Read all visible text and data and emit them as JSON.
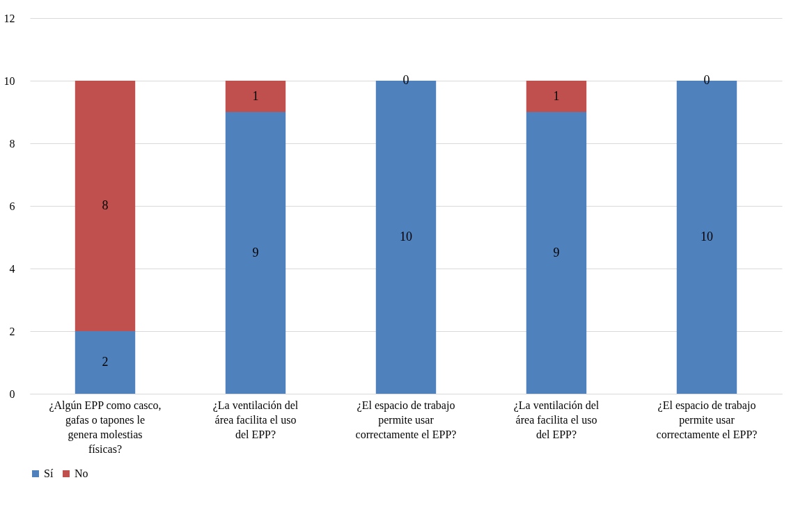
{
  "chart_data": {
    "type": "bar",
    "stacked": true,
    "categories": [
      "¿Algún EPP como casco, gafas o tapones le genera molestias físicas?",
      "¿La ventilación del área facilita el uso del EPP?",
      "¿El espacio de trabajo permite usar correctamente el EPP?",
      "¿La ventilación del área facilita el uso del EPP?",
      "¿El espacio de trabajo permite usar correctamente el EPP?"
    ],
    "series": [
      {
        "name": "Sí",
        "color": "#4f81bd",
        "values": [
          2,
          9,
          10,
          9,
          10
        ]
      },
      {
        "name": "No",
        "color": "#c0504d",
        "values": [
          8,
          1,
          0,
          1,
          0
        ]
      }
    ],
    "ylim": [
      0,
      12
    ],
    "yticks": [
      0,
      2,
      4,
      6,
      8,
      10,
      12
    ],
    "grid": "y",
    "legend": "bottom",
    "data_labels": true
  }
}
